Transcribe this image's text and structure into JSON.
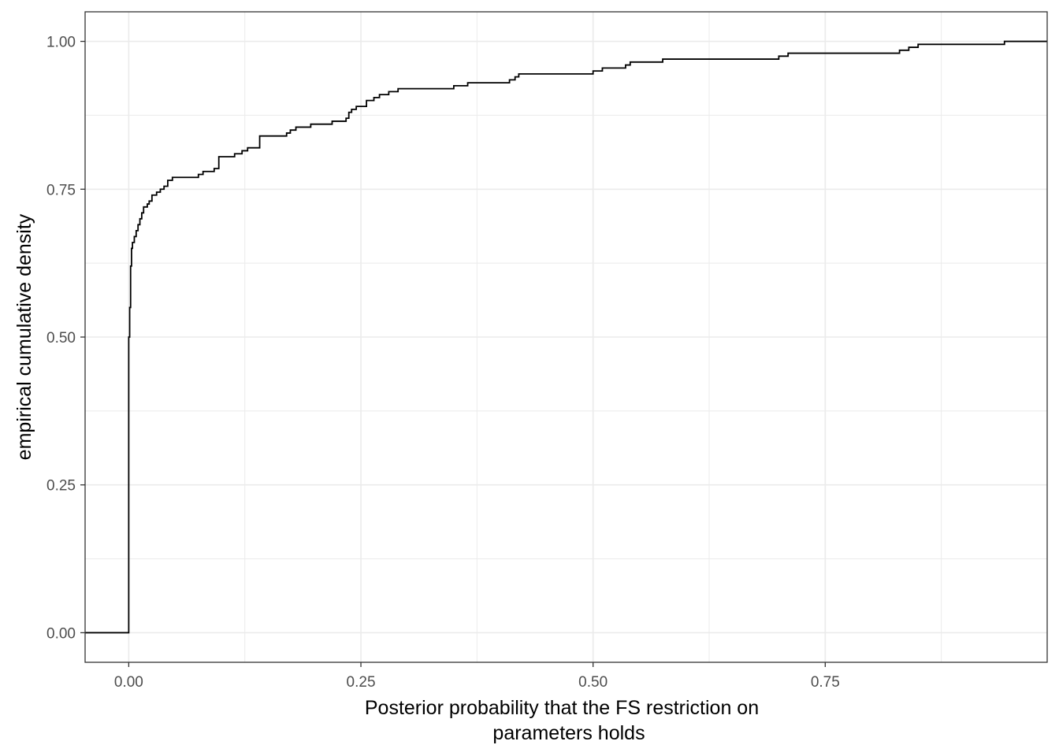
{
  "chart_data": {
    "type": "line",
    "subtype": "ecdf-step",
    "title": "",
    "xlabel_lines": [
      "Posterior probability that the FS restriction on",
      "parameters holds"
    ],
    "ylabel": "empirical cumulative density",
    "xlim": [
      -0.047,
      0.989
    ],
    "ylim": [
      -0.05,
      1.05
    ],
    "x_ticks": [
      0.0,
      0.25,
      0.5,
      0.75
    ],
    "x_tick_labels": [
      "0.00",
      "0.25",
      "0.50",
      "0.75"
    ],
    "y_ticks": [
      0.0,
      0.25,
      0.5,
      0.75,
      1.0
    ],
    "y_tick_labels": [
      "0.00",
      "0.25",
      "0.50",
      "0.75",
      "1.00"
    ],
    "grid": true,
    "legend": "none",
    "line_color": "#000000",
    "series": [
      {
        "x": [
          -0.047,
          0.0,
          0.0,
          0.001,
          0.002,
          0.003,
          0.004,
          0.006,
          0.008,
          0.01,
          0.012,
          0.014,
          0.016,
          0.02,
          0.022,
          0.025,
          0.03,
          0.034,
          0.038,
          0.042,
          0.047,
          0.075,
          0.08,
          0.092,
          0.097,
          0.114,
          0.122,
          0.128,
          0.141,
          0.17,
          0.174,
          0.18,
          0.196,
          0.219,
          0.23,
          0.234,
          0.237,
          0.24,
          0.245,
          0.256,
          0.264,
          0.27,
          0.28,
          0.29,
          0.315,
          0.35,
          0.365,
          0.38,
          0.41,
          0.416,
          0.42,
          0.49,
          0.5,
          0.51,
          0.535,
          0.54,
          0.575,
          0.6,
          0.7,
          0.703,
          0.71,
          0.83,
          0.84,
          0.85,
          0.943,
          0.989
        ],
        "y": [
          0.0,
          0.0,
          0.5,
          0.55,
          0.62,
          0.65,
          0.66,
          0.67,
          0.68,
          0.69,
          0.7,
          0.71,
          0.72,
          0.725,
          0.73,
          0.74,
          0.745,
          0.75,
          0.755,
          0.765,
          0.77,
          0.775,
          0.78,
          0.785,
          0.805,
          0.81,
          0.815,
          0.82,
          0.84,
          0.845,
          0.85,
          0.855,
          0.86,
          0.865,
          0.865,
          0.87,
          0.88,
          0.885,
          0.89,
          0.9,
          0.905,
          0.91,
          0.915,
          0.92,
          0.92,
          0.925,
          0.93,
          0.93,
          0.935,
          0.94,
          0.945,
          0.945,
          0.95,
          0.955,
          0.96,
          0.965,
          0.97,
          0.97,
          0.975,
          0.975,
          0.98,
          0.985,
          0.99,
          0.995,
          1.0,
          1.0
        ]
      }
    ]
  }
}
